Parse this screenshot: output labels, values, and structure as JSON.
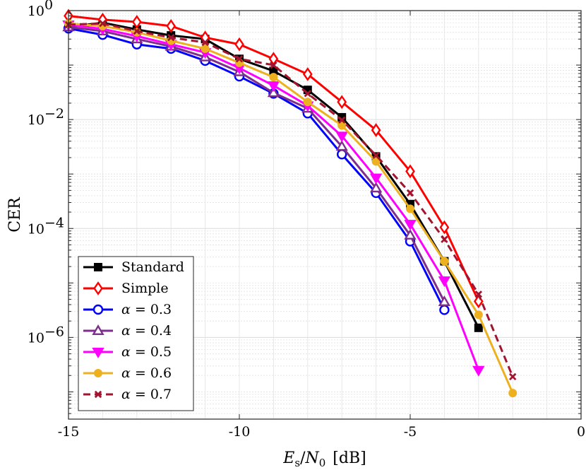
{
  "chart_data": {
    "type": "line",
    "xlabel": {
      "var_main": "E",
      "var_sub": "s",
      "sep": "/",
      "var2_main": "N",
      "var2_sub": "0",
      "unit": "[dB]"
    },
    "ylabel": "CER",
    "xlim": [
      -15,
      0
    ],
    "ylim_log10": [
      -7.5,
      0
    ],
    "y_scale": "log",
    "grid": true,
    "legend_position": "bottom-left",
    "x_ticks": [
      {
        "value": -15,
        "label": "-15"
      },
      {
        "value": -10,
        "label": "-10"
      },
      {
        "value": -5,
        "label": "-5"
      },
      {
        "value": 0,
        "label": "0"
      }
    ],
    "y_ticks": [
      {
        "exp": 0,
        "base": "10",
        "power": "0"
      },
      {
        "exp": -2,
        "base": "10",
        "power": "−2"
      },
      {
        "exp": -4,
        "base": "10",
        "power": "−4"
      },
      {
        "exp": -6,
        "base": "10",
        "power": "−6"
      }
    ],
    "series": [
      {
        "name": "Standard",
        "label": "Standard",
        "color": "#000000",
        "marker": "square",
        "filled": true,
        "dashed": false,
        "x": [
          -15,
          -14,
          -13,
          -12,
          -11,
          -10,
          -9,
          -8,
          -7,
          -6,
          -5,
          -4,
          -3
        ],
        "y": [
          0.5,
          0.6,
          0.45,
          0.35,
          0.3,
          0.13,
          0.078,
          0.035,
          0.011,
          0.0021,
          0.00028,
          2.5e-05,
          1.5e-06
        ]
      },
      {
        "name": "Simple",
        "label": "Simple",
        "color": "#ff0000",
        "marker": "diamond",
        "filled": false,
        "dashed": false,
        "x": [
          -15,
          -14,
          -13,
          -12,
          -11,
          -10,
          -9,
          -8,
          -7,
          -6,
          -5,
          -4,
          -3
        ],
        "y": [
          0.8,
          0.68,
          0.62,
          0.52,
          0.32,
          0.24,
          0.13,
          0.068,
          0.021,
          0.0064,
          0.00112,
          0.000105,
          4.6e-06
        ]
      },
      {
        "name": "alpha-0.3",
        "label_prefix": "α",
        "label_value": "= 0.3",
        "color": "#0000ff",
        "marker": "circle",
        "filled": false,
        "dashed": false,
        "x": [
          -15,
          -14,
          -13,
          -12,
          -11,
          -10,
          -9,
          -8,
          -7,
          -6,
          -5,
          -4
        ],
        "y": [
          0.47,
          0.36,
          0.24,
          0.2,
          0.12,
          0.062,
          0.03,
          0.013,
          0.0023,
          0.00045,
          5.8e-05,
          3.2e-06
        ]
      },
      {
        "name": "alpha-0.4",
        "label_prefix": "α",
        "label_value": "= 0.4",
        "color": "#7e2f8e",
        "marker": "triangle-up",
        "filled": false,
        "dashed": false,
        "x": [
          -15,
          -14,
          -13,
          -12,
          -11,
          -10,
          -9,
          -8,
          -7,
          -6,
          -5,
          -4
        ],
        "y": [
          0.5,
          0.42,
          0.3,
          0.22,
          0.14,
          0.075,
          0.031,
          0.016,
          0.0032,
          0.00055,
          7.5e-05,
          4.5e-06
        ]
      },
      {
        "name": "alpha-0.5",
        "label_prefix": "α",
        "label_value": "= 0.5",
        "color": "#ff00ff",
        "marker": "triangle-down",
        "filled": true,
        "dashed": false,
        "x": [
          -15,
          -14,
          -13,
          -12,
          -11,
          -10,
          -9,
          -8,
          -7,
          -6,
          -5,
          -4,
          -3
        ],
        "y": [
          0.55,
          0.46,
          0.34,
          0.24,
          0.17,
          0.088,
          0.042,
          0.018,
          0.005,
          0.00085,
          0.00012,
          1.1e-05,
          2.5e-07
        ]
      },
      {
        "name": "alpha-0.6",
        "label_prefix": "α",
        "label_value": "= 0.6",
        "color": "#edb120",
        "marker": "circle",
        "filled": true,
        "dashed": false,
        "x": [
          -15,
          -14,
          -13,
          -12,
          -11,
          -10,
          -9,
          -8,
          -7,
          -6,
          -5,
          -4,
          -3,
          -2
        ],
        "y": [
          0.58,
          0.52,
          0.4,
          0.28,
          0.2,
          0.11,
          0.06,
          0.021,
          0.0078,
          0.0017,
          0.00023,
          2.5e-05,
          2.6e-06,
          9.5e-08
        ]
      },
      {
        "name": "alpha-0.7",
        "label_prefix": "α",
        "label_value": "= 0.7",
        "color": "#a2142f",
        "marker": "x",
        "filled": false,
        "dashed": true,
        "x": [
          -15,
          -14,
          -13,
          -12,
          -11,
          -10,
          -9,
          -8,
          -7,
          -6,
          -5,
          -4,
          -3,
          -2
        ],
        "y": [
          0.55,
          0.58,
          0.42,
          0.32,
          0.26,
          0.13,
          0.1,
          0.03,
          0.0098,
          0.0022,
          0.00045,
          6.3e-05,
          6.2e-06,
          1.9e-07
        ]
      }
    ]
  }
}
